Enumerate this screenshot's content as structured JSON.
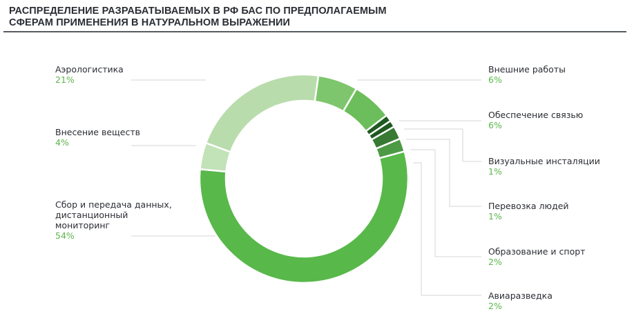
{
  "title": {
    "line1": "РАСПРЕДЕЛЕНИЕ РАЗРАБАТЫВАЕМЫХ В РФ БАС ПО ПРЕДПОЛАГАЕМЫМ",
    "line2": "СФЕРАМ ПРИМЕНЕНИЯ В НАТУРАЛЬНОМ ВЫРАЖЕНИИ"
  },
  "labels": {
    "aero": {
      "name": "Аэрологистика",
      "pct": "21%"
    },
    "vnesenie": {
      "name": "Внесение веществ",
      "pct": "4%"
    },
    "sbor": {
      "name1": "Сбор и передача данных,",
      "name2": "дистанционный",
      "name3": "мониторинг",
      "pct": "54%"
    },
    "vneshnie": {
      "name": "Внешние работы",
      "pct": "6%"
    },
    "svyaz": {
      "name": "Обеспечение связью",
      "pct": "6%"
    },
    "vizual": {
      "name": "Визуальные инсталяции",
      "pct": "1%"
    },
    "perevozka": {
      "name": "Перевозка людей",
      "pct": "1%"
    },
    "obrazovanie": {
      "name": "Образование и спорт",
      "pct": "2%"
    },
    "aviarazvedka": {
      "name": "Авиаразведка",
      "pct": "2%"
    }
  },
  "colors": {
    "accent_pct": "#5bb54a",
    "title": "#2a2d33",
    "leader_line": "#d4d4d4"
  },
  "chart_data": {
    "type": "pie",
    "donut": true,
    "title": "Распределение разрабатываемых в РФ БАС по предполагаемым сферам применения в натуральном выражении",
    "categories": [
      "Внешние работы",
      "Обеспечение связью",
      "Визуальные инсталяции",
      "Перевозка людей",
      "Образование и спорт",
      "Авиаразведка",
      "Сбор и передача данных, дистанционный мониторинг",
      "Внесение веществ",
      "Аэрологистика"
    ],
    "values": [
      6,
      6,
      1,
      1,
      2,
      2,
      54,
      4,
      21
    ],
    "unit": "%",
    "colors": [
      "#7ec66d",
      "#6cbd5b",
      "#1f5a20",
      "#1f5a20",
      "#387a34",
      "#4d9a45",
      "#58b84a",
      "#c2e2b7",
      "#b9dcac"
    ],
    "legend_position": "callouts left and right"
  }
}
